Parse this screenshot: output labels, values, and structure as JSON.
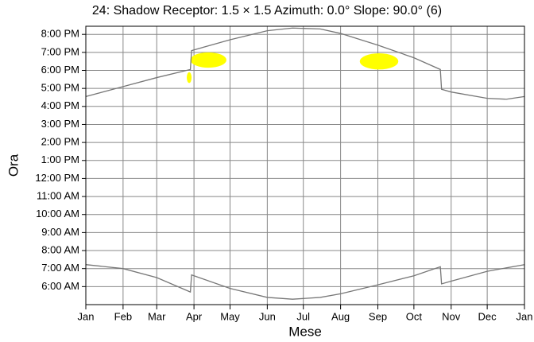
{
  "chart_data": {
    "type": "line",
    "title": "24: Shadow Receptor: 1.5 × 1.5  Azimuth: 0.0°  Slope: 90.0° (6)",
    "x_label": "Mese",
    "y_label": "Ora",
    "xlim": [
      0,
      365
    ],
    "xticks": [
      {
        "value": 0,
        "label": "Jan"
      },
      {
        "value": 31,
        "label": "Feb"
      },
      {
        "value": 59,
        "label": "Mar"
      },
      {
        "value": 90,
        "label": "Apr"
      },
      {
        "value": 120,
        "label": "May"
      },
      {
        "value": 151,
        "label": "Jun"
      },
      {
        "value": 181,
        "label": "Jul"
      },
      {
        "value": 212,
        "label": "Aug"
      },
      {
        "value": 243,
        "label": "Sep"
      },
      {
        "value": 273,
        "label": "Oct"
      },
      {
        "value": 304,
        "label": "Nov"
      },
      {
        "value": 334,
        "label": "Dec"
      },
      {
        "value": 365,
        "label": "Jan"
      }
    ],
    "ylim": [
      5,
      20.45
    ],
    "yticks": [
      {
        "value": 6,
        "label": "6:00 AM"
      },
      {
        "value": 7,
        "label": "7:00 AM"
      },
      {
        "value": 8,
        "label": "8:00 AM"
      },
      {
        "value": 9,
        "label": "9:00 AM"
      },
      {
        "value": 10,
        "label": "10:00 AM"
      },
      {
        "value": 11,
        "label": "11:00 AM"
      },
      {
        "value": 12,
        "label": "12:00 PM"
      },
      {
        "value": 13,
        "label": "1:00 PM"
      },
      {
        "value": 14,
        "label": "2:00 PM"
      },
      {
        "value": 15,
        "label": "3:00 PM"
      },
      {
        "value": 16,
        "label": "4:00 PM"
      },
      {
        "value": 17,
        "label": "5:00 PM"
      },
      {
        "value": 18,
        "label": "6:00 PM"
      },
      {
        "value": 19,
        "label": "7:00 PM"
      },
      {
        "value": 20,
        "label": "8:00 PM"
      }
    ],
    "grid": true,
    "series": [
      {
        "color": "#777777",
        "x": [
          0,
          31,
          59,
          87,
          88,
          120,
          151,
          172,
          195,
          212,
          243,
          273,
          295,
          296,
          304,
          334,
          350,
          365
        ],
        "values": [
          16.55,
          17.1,
          17.6,
          18.05,
          19.1,
          19.7,
          20.2,
          20.35,
          20.3,
          20.05,
          19.4,
          18.7,
          18.05,
          16.95,
          16.8,
          16.45,
          16.4,
          16.55
        ]
      },
      {
        "color": "#777777",
        "x": [
          0,
          31,
          59,
          87,
          88,
          120,
          151,
          172,
          195,
          212,
          243,
          273,
          295,
          296,
          304,
          334,
          365
        ],
        "values": [
          7.22,
          7.0,
          6.5,
          5.7,
          6.65,
          5.9,
          5.4,
          5.3,
          5.4,
          5.6,
          6.1,
          6.6,
          7.1,
          6.15,
          6.3,
          6.85,
          7.22
        ]
      }
    ],
    "shadow_areas": {
      "color": "#ffff00",
      "areas": [
        {
          "x": [
            87,
            117
          ],
          "y": [
            18.15,
            19.0
          ]
        },
        {
          "x": [
            84,
            88
          ],
          "y": [
            17.3,
            17.9
          ]
        },
        {
          "x": [
            228,
            260
          ],
          "y": [
            18.05,
            18.95
          ]
        }
      ]
    }
  }
}
